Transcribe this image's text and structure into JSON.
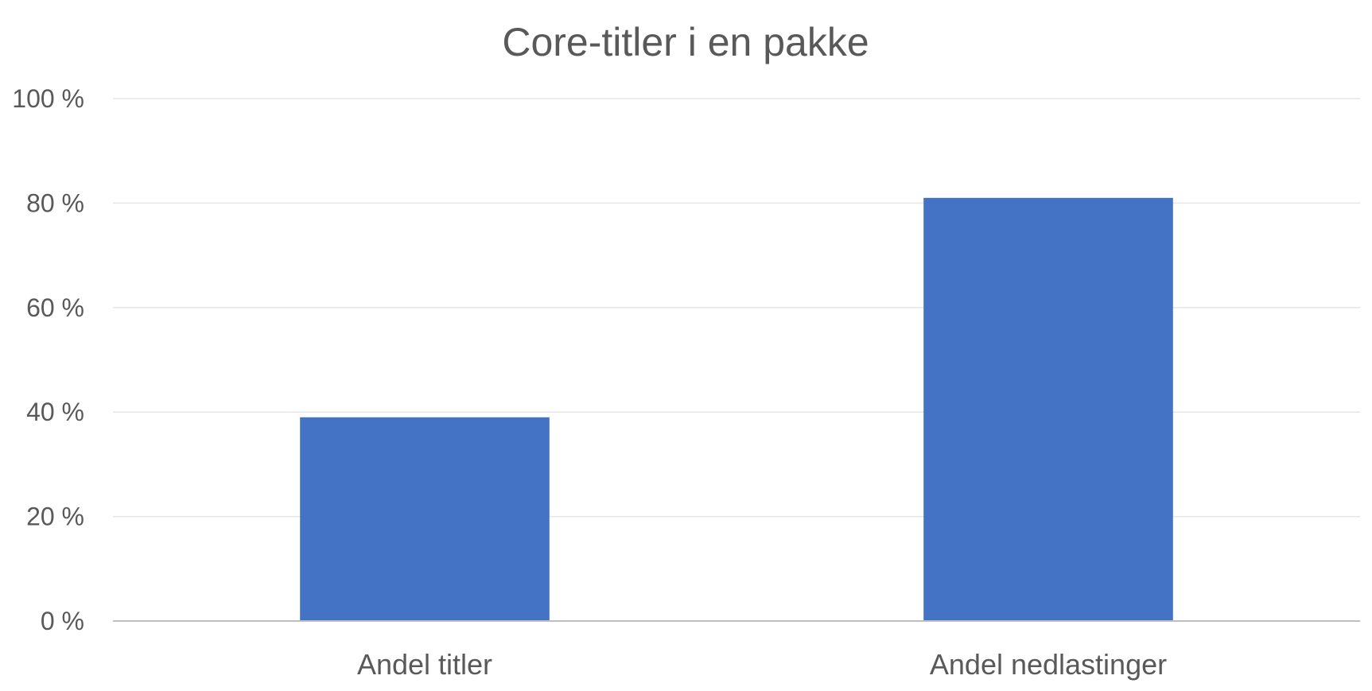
{
  "chart_data": {
    "type": "bar",
    "title": "Core-titler i en pakke",
    "categories": [
      "Andel titler",
      "Andel nedlastinger"
    ],
    "values": [
      39,
      81
    ],
    "ylim": [
      0,
      100
    ],
    "yticks": [
      0,
      20,
      40,
      60,
      80,
      100
    ],
    "ytick_labels": [
      "0 %",
      "20 %",
      "40 %",
      "60 %",
      "80 %",
      "100 %"
    ],
    "xlabel": "",
    "ylabel": "",
    "grid": true,
    "legend": "none",
    "bar_color": "#4472C4"
  }
}
